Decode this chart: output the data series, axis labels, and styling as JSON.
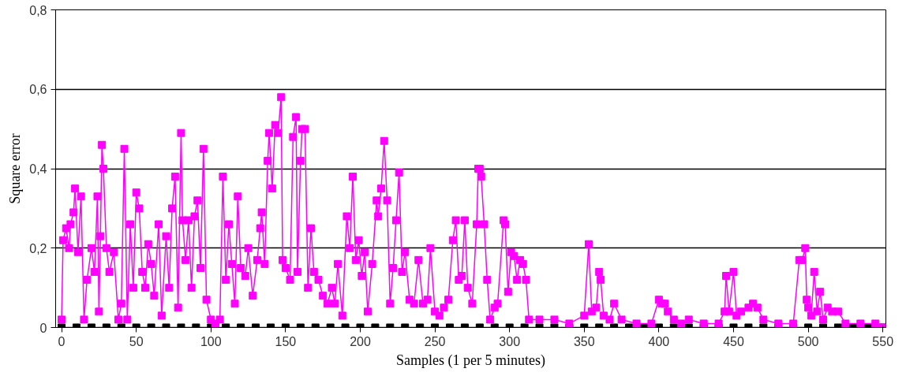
{
  "chart_data": {
    "type": "line",
    "xlabel": "Samples (1 per 5 minutes)",
    "ylabel": "Square error",
    "xlim": [
      -4,
      552
    ],
    "xticks": [
      0,
      50,
      100,
      150,
      200,
      250,
      300,
      350,
      400,
      450,
      500,
      550
    ],
    "ylim": [
      0,
      0.8
    ],
    "yticks": [
      0,
      {
        "value": 0.2,
        "label": "0,2"
      },
      {
        "value": 0.4,
        "label": "0,4"
      },
      {
        "value": 0.6,
        "label": "0,6"
      },
      {
        "value": 0.8,
        "label": "0,8"
      }
    ],
    "grid": "y",
    "marker": "square",
    "line_style": "solid",
    "series": [
      {
        "color": "#000000",
        "x": [
          0,
          10,
          20,
          30,
          40,
          50,
          60,
          70,
          80,
          90,
          100,
          110,
          120,
          130,
          140,
          150,
          160,
          170,
          180,
          190,
          200,
          210,
          220,
          230,
          240,
          250,
          260,
          270,
          280,
          290,
          300,
          310,
          320,
          330,
          340,
          350,
          360,
          370,
          380,
          390,
          400,
          410,
          420,
          430,
          440,
          450,
          460,
          470,
          480,
          490,
          500,
          510,
          520,
          530,
          540,
          550
        ],
        "values": [
          0,
          0,
          0,
          0,
          0,
          0,
          0,
          0,
          0,
          0,
          0,
          0,
          0,
          0,
          0,
          0,
          0,
          0,
          0,
          0,
          0,
          0,
          0,
          0,
          0,
          0,
          0,
          0,
          0,
          0,
          0,
          0,
          0,
          0,
          0,
          0,
          0,
          0,
          0,
          0,
          0,
          0,
          0,
          0,
          0,
          0,
          0,
          0,
          0,
          0,
          0,
          0,
          0,
          0,
          0,
          0
        ]
      },
      {
        "color": "#ff00ff",
        "x": [
          0,
          1,
          3,
          5,
          6,
          8,
          9,
          11,
          13,
          15,
          17,
          20,
          22,
          24,
          25,
          26,
          27,
          28,
          30,
          32,
          35,
          38,
          40,
          42,
          44,
          46,
          48,
          50,
          52,
          54,
          56,
          58,
          60,
          62,
          65,
          67,
          70,
          72,
          74,
          76,
          78,
          80,
          81,
          83,
          85,
          87,
          89,
          91,
          93,
          95,
          97,
          100,
          103,
          106,
          108,
          110,
          112,
          114,
          116,
          118,
          120,
          123,
          125,
          128,
          131,
          133,
          134,
          136,
          138,
          139,
          141,
          143,
          145,
          147,
          148,
          150,
          153,
          155,
          157,
          158,
          160,
          161,
          163,
          165,
          167,
          169,
          172,
          175,
          178,
          181,
          183,
          185,
          188,
          191,
          193,
          195,
          197,
          199,
          201,
          203,
          205,
          208,
          211,
          212,
          214,
          216,
          218,
          220,
          222,
          224,
          226,
          228,
          230,
          233,
          236,
          239,
          242,
          245,
          247,
          250,
          253,
          256,
          259,
          262,
          264,
          266,
          268,
          270,
          272,
          275,
          278,
          279,
          280,
          281,
          283,
          285,
          287,
          290,
          292,
          296,
          297,
          299,
          301,
          303,
          305,
          307,
          309,
          311,
          313,
          320,
          330,
          340,
          350,
          353,
          355,
          358,
          360,
          361,
          363,
          367,
          370,
          375,
          385,
          395,
          400,
          402,
          404,
          406,
          410,
          415,
          420,
          430,
          440,
          444,
          445,
          447,
          450,
          452,
          455,
          460,
          463,
          466,
          470,
          480,
          490,
          494,
          496,
          498,
          499,
          500,
          502,
          504,
          506,
          508,
          510,
          513,
          516,
          520,
          525,
          535,
          545,
          550
        ],
        "values": [
          0.02,
          0.22,
          0.25,
          0.2,
          0.26,
          0.29,
          0.35,
          0.19,
          0.33,
          0.02,
          0.12,
          0.2,
          0.14,
          0.33,
          0.04,
          0.23,
          0.46,
          0.4,
          0.2,
          0.14,
          0.19,
          0.02,
          0.06,
          0.45,
          0.02,
          0.26,
          0.1,
          0.34,
          0.3,
          0.14,
          0.1,
          0.21,
          0.16,
          0.08,
          0.26,
          0.03,
          0.23,
          0.1,
          0.3,
          0.38,
          0.05,
          0.49,
          0.27,
          0.17,
          0.27,
          0.1,
          0.28,
          0.32,
          0.15,
          0.45,
          0.07,
          0.02,
          0.01,
          0.02,
          0.38,
          0.12,
          0.26,
          0.16,
          0.06,
          0.33,
          0.15,
          0.13,
          0.2,
          0.08,
          0.17,
          0.25,
          0.29,
          0.16,
          0.42,
          0.49,
          0.35,
          0.51,
          0.49,
          0.58,
          0.17,
          0.15,
          0.12,
          0.48,
          0.53,
          0.14,
          0.42,
          0.5,
          0.5,
          0.1,
          0.25,
          0.14,
          0.12,
          0.08,
          0.06,
          0.1,
          0.06,
          0.16,
          0.03,
          0.28,
          0.2,
          0.38,
          0.17,
          0.22,
          0.13,
          0.19,
          0.04,
          0.16,
          0.32,
          0.28,
          0.35,
          0.47,
          0.32,
          0.06,
          0.15,
          0.27,
          0.39,
          0.14,
          0.19,
          0.07,
          0.06,
          0.17,
          0.06,
          0.07,
          0.2,
          0.04,
          0.03,
          0.05,
          0.07,
          0.22,
          0.27,
          0.12,
          0.13,
          0.27,
          0.1,
          0.06,
          0.26,
          0.4,
          0.4,
          0.38,
          0.26,
          0.12,
          0.02,
          0.05,
          0.06,
          0.27,
          0.26,
          0.09,
          0.19,
          0.18,
          0.12,
          0.17,
          0.16,
          0.12,
          0.02,
          0.02,
          0.02,
          0.01,
          0.03,
          0.21,
          0.04,
          0.05,
          0.14,
          0.12,
          0.03,
          0.02,
          0.06,
          0.02,
          0.01,
          0.01,
          0.07,
          0.06,
          0.06,
          0.04,
          0.02,
          0.01,
          0.02,
          0.01,
          0.01,
          0.04,
          0.13,
          0.04,
          0.14,
          0.03,
          0.04,
          0.05,
          0.06,
          0.05,
          0.02,
          0.01,
          0.01,
          0.17,
          0.17,
          0.2,
          0.07,
          0.05,
          0.03,
          0.14,
          0.04,
          0.09,
          0.02,
          0.05,
          0.04,
          0.04,
          0.01,
          0.01,
          0.01,
          0.0
        ]
      }
    ]
  }
}
